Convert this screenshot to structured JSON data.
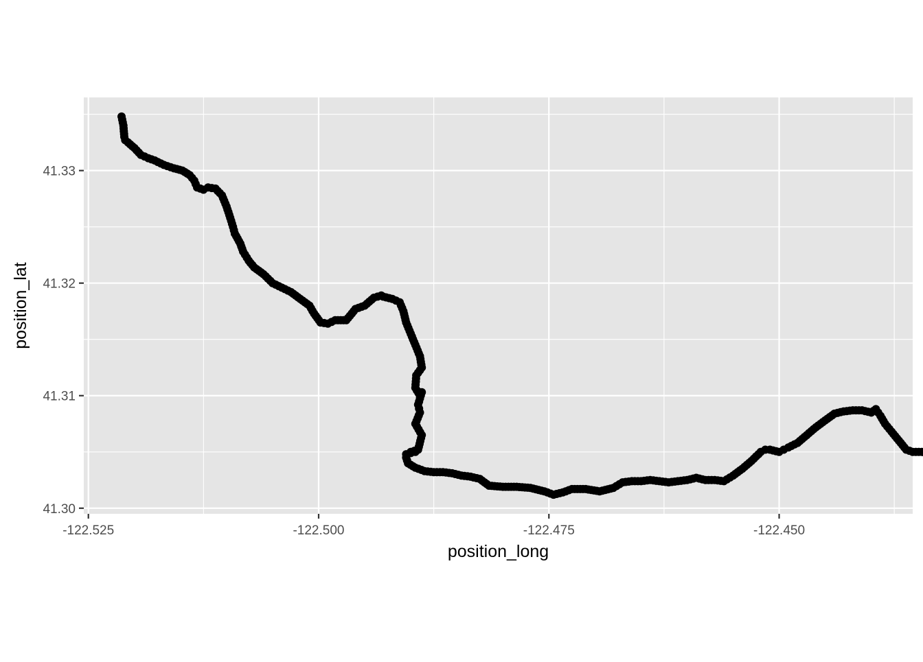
{
  "chart_data": {
    "type": "scatter",
    "title": "",
    "xlabel": "position_long",
    "ylabel": "position_lat",
    "xlim": [
      -122.5255,
      -122.4355
    ],
    "ylim": [
      41.2995,
      41.3365
    ],
    "x_ticks": [
      -122.525,
      -122.5,
      -122.475,
      -122.45
    ],
    "x_tick_labels": [
      "-122.525",
      "-122.500",
      "-122.475",
      "-122.450"
    ],
    "y_ticks": [
      41.3,
      41.31,
      41.32,
      41.33
    ],
    "y_tick_labels": [
      "41.30",
      "41.31",
      "41.32",
      "41.33"
    ],
    "grid": true,
    "background": "#e5e5e5",
    "point_color": "#000000",
    "series": [
      {
        "x": [
          -122.5214,
          -122.5212,
          -122.5211,
          -122.521,
          -122.5207,
          -122.52,
          -122.5193,
          -122.5185,
          -122.5178,
          -122.5168,
          -122.5157,
          -122.5148,
          -122.514,
          -122.5135,
          -122.5132,
          -122.5125,
          -122.512,
          -122.5112,
          -122.5105,
          -122.51,
          -122.5096,
          -122.5093,
          -122.5091,
          -122.5085,
          -122.5082,
          -122.5076,
          -122.507,
          -122.506,
          -122.505,
          -122.504,
          -122.503,
          -122.502,
          -122.501,
          -122.5005,
          -122.4998,
          -122.499,
          -122.4982,
          -122.497,
          -122.496,
          -122.495,
          -122.494,
          -122.4932,
          -122.493,
          -122.492,
          -122.4912,
          -122.4908,
          -122.4905,
          -122.49,
          -122.4895,
          -122.489,
          -122.4888,
          -122.4894,
          -122.4895,
          -122.489,
          -122.4888,
          -122.4892,
          -122.489,
          -122.4895,
          -122.4888,
          -122.4892,
          -122.49,
          -122.4895,
          -122.49,
          -122.4905,
          -122.4905,
          -122.4903,
          -122.4895,
          -122.4885,
          -122.4875,
          -122.4865,
          -122.4855,
          -122.4845,
          -122.4835,
          -122.4825,
          -122.4815,
          -122.48,
          -122.4785,
          -122.477,
          -122.4755,
          -122.4745,
          -122.4735,
          -122.4725,
          -122.471,
          -122.4695,
          -122.468,
          -122.467,
          -122.466,
          -122.465,
          -122.464,
          -122.463,
          -122.462,
          -122.461,
          -122.46,
          -122.459,
          -122.458,
          -122.457,
          -122.456,
          -122.455,
          -122.454,
          -122.453,
          -122.452,
          -122.4515,
          -122.451,
          -122.45,
          -122.4495,
          -122.449,
          -122.448,
          -122.447,
          -122.446,
          -122.445,
          -122.444,
          -122.443,
          -122.442,
          -122.441,
          -122.44,
          -122.4395,
          -122.439,
          -122.4385,
          -122.4378,
          -122.437,
          -122.4362,
          -122.4355,
          -122.4345,
          -122.4335
        ],
        "y": [
          41.3348,
          41.334,
          41.333,
          41.3327,
          41.3325,
          41.332,
          41.3314,
          41.3311,
          41.3309,
          41.3305,
          41.3302,
          41.33,
          41.3296,
          41.3291,
          41.3285,
          41.3283,
          41.3285,
          41.3284,
          41.3278,
          41.3268,
          41.3258,
          41.325,
          41.3244,
          41.3235,
          41.3228,
          41.322,
          41.3214,
          41.3208,
          41.32,
          41.3196,
          41.3192,
          41.3186,
          41.318,
          41.3173,
          41.3165,
          41.3164,
          41.3167,
          41.3167,
          41.3177,
          41.318,
          41.3187,
          41.3189,
          41.3188,
          41.3186,
          41.3183,
          41.3175,
          41.3165,
          41.3155,
          41.3145,
          41.3135,
          41.3125,
          41.3118,
          41.3107,
          41.31,
          41.3103,
          41.3092,
          41.3085,
          41.3075,
          41.3065,
          41.3052,
          41.305,
          41.305,
          41.3049,
          41.3048,
          41.3045,
          41.304,
          41.3036,
          41.3033,
          41.3032,
          41.3032,
          41.3031,
          41.3029,
          41.3028,
          41.3026,
          41.302,
          41.3019,
          41.3019,
          41.3018,
          41.3015,
          41.3012,
          41.3014,
          41.3017,
          41.3017,
          41.3015,
          41.3018,
          41.3023,
          41.3024,
          41.3024,
          41.3025,
          41.3024,
          41.3023,
          41.3024,
          41.3025,
          41.3027,
          41.3025,
          41.3025,
          41.3024,
          41.3029,
          41.3035,
          41.3042,
          41.305,
          41.3052,
          41.3052,
          41.305,
          41.3052,
          41.3054,
          41.3058,
          41.3065,
          41.3072,
          41.3078,
          41.3084,
          41.3086,
          41.3087,
          41.3087,
          41.3085,
          41.3088,
          41.3082,
          41.3075,
          41.3068,
          41.306,
          41.3052,
          41.305,
          41.305,
          41.3048
        ]
      }
    ]
  }
}
